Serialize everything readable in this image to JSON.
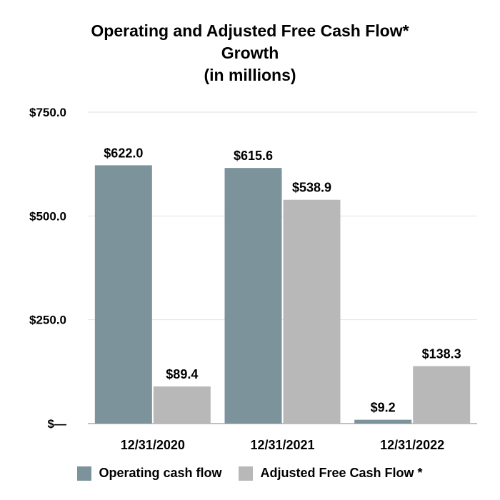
{
  "chart_data": {
    "type": "bar",
    "title_lines": [
      "Operating and Adjusted Free Cash Flow*",
      "Growth",
      "(in millions)"
    ],
    "categories": [
      "12/31/2020",
      "12/31/2021",
      "12/31/2022"
    ],
    "series": [
      {
        "name": "Operating cash flow",
        "color": "#7d939c",
        "values": [
          622.0,
          615.6,
          9.2
        ],
        "labels": [
          "$622.0",
          "$615.6",
          "$9.2"
        ]
      },
      {
        "name": "Adjusted Free Cash Flow *",
        "color": "#b8b8b8",
        "values": [
          89.4,
          538.9,
          138.3
        ],
        "labels": [
          "$89.4",
          "$538.9",
          "$138.3"
        ]
      }
    ],
    "y_ticks": [
      {
        "value": 0,
        "label": "$—"
      },
      {
        "value": 250,
        "label": "$250.0"
      },
      {
        "value": 500,
        "label": "$500.0"
      },
      {
        "value": 750,
        "label": "$750.0"
      }
    ],
    "ylim": [
      0,
      750
    ],
    "grid": true,
    "legend_position": "bottom"
  }
}
